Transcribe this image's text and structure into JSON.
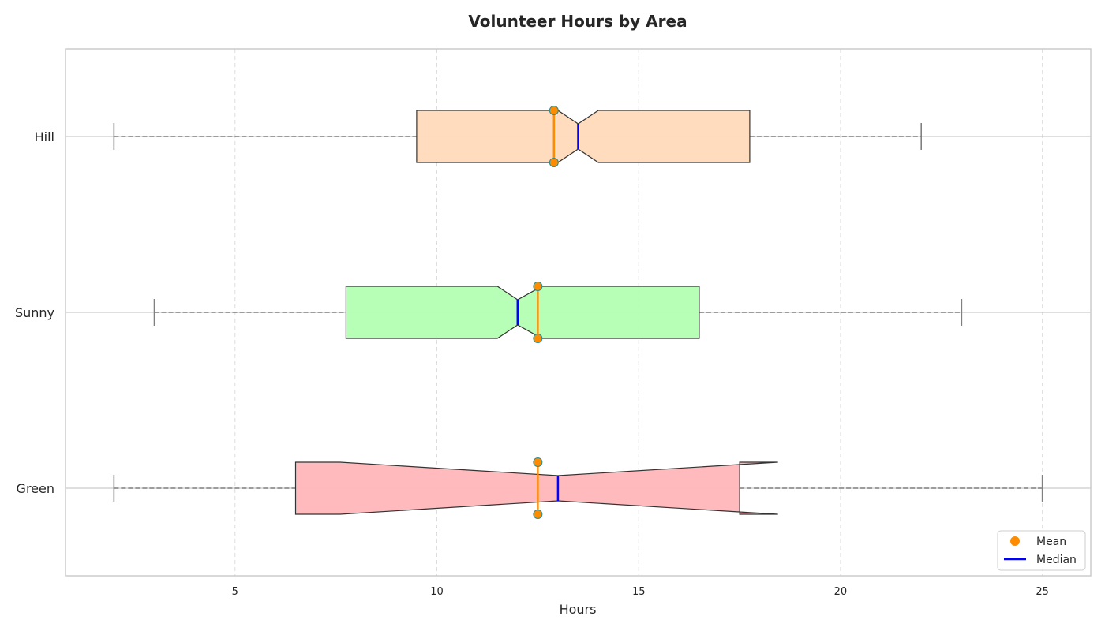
{
  "chart_data": {
    "type": "box",
    "orientation": "horizontal",
    "notched": true,
    "title": "Volunteer Hours by Area",
    "xlabel": "Hours",
    "ylabel": "",
    "xlim": [
      0.8,
      26.2
    ],
    "xticks": [
      5,
      10,
      15,
      20,
      25
    ],
    "xtick_labels": [
      "5",
      "10",
      "15",
      "20",
      "25"
    ],
    "grid": true,
    "categories": [
      "Hill",
      "Sunny",
      "Green"
    ],
    "boxes": [
      {
        "category": "Hill",
        "whisker_low": 2.0,
        "q1": 9.5,
        "median": 13.5,
        "q3": 17.75,
        "whisker_high": 22.0,
        "notch_low": 13.0,
        "notch_high": 14.0,
        "mean": 12.9,
        "fill": "#FFDAB9"
      },
      {
        "category": "Sunny",
        "whisker_low": 3.0,
        "q1": 7.75,
        "median": 12.0,
        "q3": 16.5,
        "whisker_high": 23.0,
        "notch_low": 11.5,
        "notch_high": 12.6,
        "mean": 12.5,
        "fill": "#B3FFB3"
      },
      {
        "category": "Green",
        "whisker_low": 2.0,
        "q1": 6.5,
        "median": 13.0,
        "q3": 17.5,
        "whisker_high": 25.0,
        "notch_low": 7.6,
        "notch_high": 18.45,
        "mean": 12.5,
        "fill": "#FFB6B9"
      }
    ],
    "legend": {
      "placement": "bottom-right",
      "entries": [
        {
          "label": "Mean",
          "marker": "circle",
          "color": "#FF8C00"
        },
        {
          "label": "Median",
          "marker": "line",
          "color": "#0000FF"
        }
      ]
    },
    "colors": {
      "mean": "#FF8C00",
      "mean_edge": "#2E8B8B",
      "median": "#0000FF",
      "whisker": "#808080",
      "box_edge": "#333333",
      "grid": "#DDDDDD",
      "frame": "#CCCCCC"
    }
  }
}
